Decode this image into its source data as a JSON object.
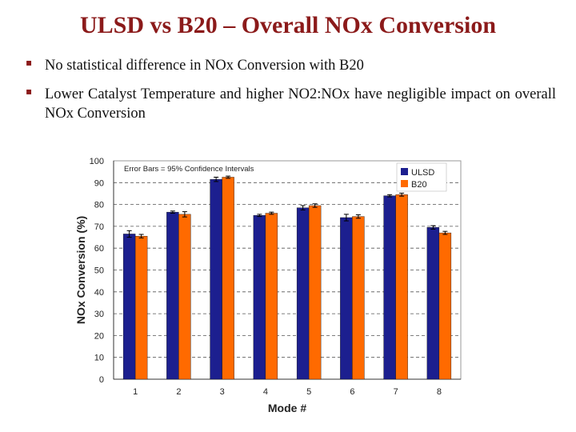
{
  "slide": {
    "title": "ULSD vs B20 – Overall NOx Conversion",
    "bullets": [
      "No statistical difference in NOx Conversion with B20",
      "Lower Catalyst Temperature and higher NO2:NOx have negligible impact on overall NOx Conversion"
    ],
    "bullet_marker": "▪"
  },
  "chart_data": {
    "type": "bar",
    "annotation": "Error Bars = 95% Confidence Intervals",
    "xlabel": "Mode #",
    "ylabel": "NOx Conversion (%)",
    "categories": [
      "1",
      "2",
      "3",
      "4",
      "5",
      "6",
      "7",
      "8"
    ],
    "ylim": [
      0,
      100
    ],
    "yticks": [
      0,
      10,
      20,
      30,
      40,
      50,
      60,
      70,
      80,
      90,
      100
    ],
    "series": [
      {
        "name": "ULSD",
        "color": "#1c1f8f",
        "values": [
          66.5,
          76.5,
          91.5,
          75,
          78.5,
          74,
          84,
          69.5
        ],
        "error": [
          1.5,
          0.5,
          1.0,
          0.5,
          1.0,
          1.5,
          0.5,
          0.8
        ]
      },
      {
        "name": "B20",
        "color": "#ff6a00",
        "values": [
          65.5,
          75.5,
          92.5,
          76,
          79.5,
          74.5,
          84.5,
          67
        ],
        "error": [
          0.8,
          1.2,
          0.5,
          0.5,
          0.8,
          0.8,
          0.7,
          0.7
        ]
      }
    ],
    "legend_position": "top-right",
    "grid": "dashed horizontal"
  }
}
